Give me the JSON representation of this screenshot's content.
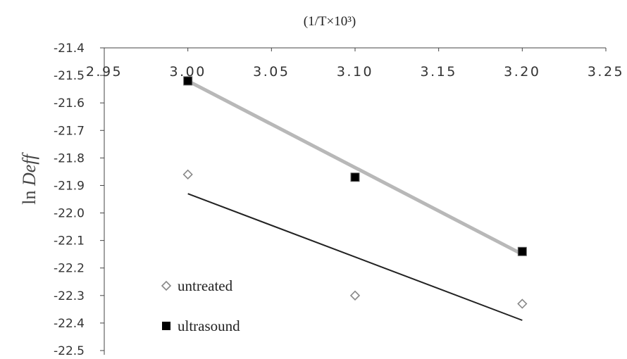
{
  "chart_data": {
    "type": "scatter",
    "title": "",
    "xlabel": "(1/T×10³)",
    "ylabel_prefix": "ln ",
    "ylabel_italic": "Deff",
    "xlim": [
      2.95,
      3.25
    ],
    "ylim": [
      -22.5,
      -21.4
    ],
    "x_ticks": [
      "2.95",
      "3.00",
      "3.05",
      "3.10",
      "3.15",
      "3.20",
      "3.25"
    ],
    "y_ticks": [
      "-21.4",
      "-21.5",
      "-21.6",
      "-21.7",
      "-21.8",
      "-21.9",
      "-22.0",
      "-22.1",
      "-22.2",
      "-22.3",
      "-22.4",
      "-22.5"
    ],
    "x_axis_position": "top",
    "legend_placement": "bottom-left",
    "grid": false,
    "series": [
      {
        "name": "untreated",
        "marker": "diamond-open",
        "color": "#888888",
        "x": [
          3.0,
          3.1,
          3.2
        ],
        "y": [
          -21.86,
          -22.3,
          -22.33
        ],
        "trendline": {
          "x": [
            3.0,
            3.2
          ],
          "y": [
            -21.93,
            -22.39
          ],
          "color": "#222222"
        }
      },
      {
        "name": "ultrasound",
        "marker": "square-filled",
        "color": "#000000",
        "x": [
          3.0,
          3.1,
          3.2
        ],
        "y": [
          -21.52,
          -21.87,
          -22.14
        ],
        "trendline": {
          "x": [
            3.0,
            3.2
          ],
          "y": [
            -21.52,
            -22.15
          ],
          "color": "#b8b8b8"
        }
      }
    ]
  }
}
